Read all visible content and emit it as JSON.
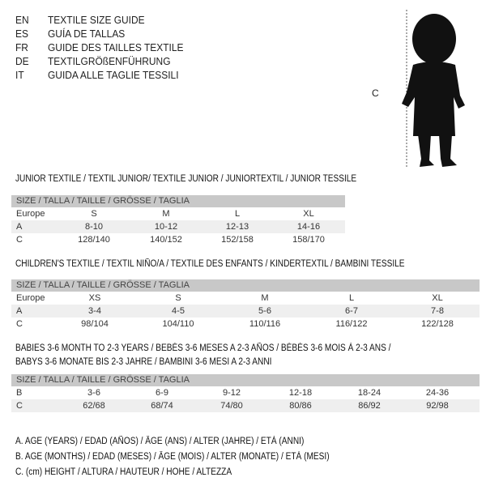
{
  "languages": [
    {
      "code": "EN",
      "title": "TEXTILE SIZE GUIDE"
    },
    {
      "code": "ES",
      "title": "GUÍA DE TALLAS"
    },
    {
      "code": "FR",
      "title": "GUIDE DES TAILLES TEXTILE"
    },
    {
      "code": "DE",
      "title": "TEXTILGRÖßENFÜHRUNG"
    },
    {
      "code": "IT",
      "title": "GUIDA ALLE TAGLIE TESSILI"
    }
  ],
  "figure": {
    "measure_label": "C"
  },
  "size_header": "SIZE / TALLA / TAILLE / GRÖSSE / TAGLIA",
  "junior": {
    "title": "JUNIOR TEXTILE / TEXTIL JUNIOR/ TEXTILE JUNIOR / JUNIORTEXTIL / JUNIOR TESSILE",
    "rows": [
      {
        "label": "Europe",
        "values": [
          "S",
          "M",
          "L",
          "XL"
        ]
      },
      {
        "label": "A",
        "values": [
          "8-10",
          "10-12",
          "12-13",
          "14-16"
        ]
      },
      {
        "label": "C",
        "values": [
          "128/140",
          "140/152",
          "152/158",
          "158/170"
        ]
      }
    ]
  },
  "children": {
    "title": "CHILDREN'S TEXTILE / TEXTIL NIÑO/A / TEXTILE DES ENFANTS / KINDERTEXTIL / BAMBINI TESSILE",
    "rows": [
      {
        "label": "Europe",
        "values": [
          "XS",
          "S",
          "M",
          "L",
          "XL"
        ]
      },
      {
        "label": "A",
        "values": [
          "3-4",
          "4-5",
          "5-6",
          "6-7",
          "7-8"
        ]
      },
      {
        "label": "C",
        "values": [
          "98/104",
          "104/110",
          "110/116",
          "116/122",
          "122/128"
        ]
      }
    ]
  },
  "babies": {
    "title_line1": "BABIES 3-6 MONTH TO 2-3 YEARS / BEBÉS 3-6 MESES A 2-3 AÑOS / BÉBÉS 3-6 MOIS À 2-3 ANS /",
    "title_line2": "BABYS 3-6 MONATE BIS 2-3 JAHRE / BAMBINI 3-6 MESI A 2-3 ANNI",
    "rows": [
      {
        "label": "B",
        "values": [
          "3-6",
          "6-9",
          "9-12",
          "12-18",
          "18-24",
          "24-36"
        ]
      },
      {
        "label": "C",
        "values": [
          "62/68",
          "68/74",
          "74/80",
          "80/86",
          "86/92",
          "92/98"
        ]
      }
    ]
  },
  "legend": [
    "A. AGE (YEARS) / EDAD (AÑOS) / ÂGE (ANS) / ALTER (JAHRE) / ETÀ (ANNI)",
    "B. AGE (MONTHS) / EDAD (MESES) / ÂGE (MOIS) / ALTER (MONATE) / ETÀ (MESI)",
    "C. (cm) HEIGHT / ALTURA / HAUTEUR / HÖHE / ALTEZZA"
  ]
}
